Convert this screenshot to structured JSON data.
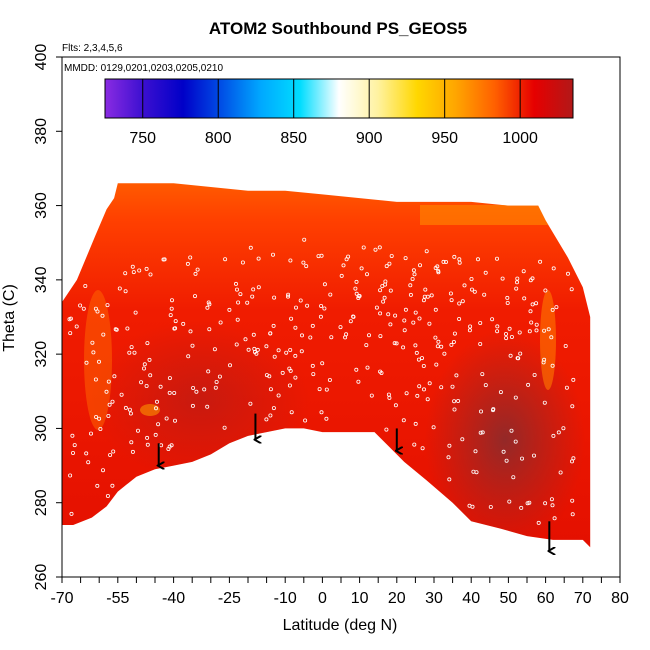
{
  "chart_data": {
    "type": "heatmap",
    "title": "ATOM2 Southbound PS_GEOS5",
    "annotations": {
      "flights": "Flts: 2,3,4,5,6",
      "dates": "MMDD: 0129,0201,0203,0205,0210"
    },
    "xlabel": "Latitude (deg N)",
    "ylabel": "Theta (C)",
    "xlim": [
      -70,
      80
    ],
    "ylim": [
      260,
      400
    ],
    "x_tick_labels": [
      "-70",
      "-55",
      "-40",
      "-25",
      "-10",
      "0",
      "10",
      "20",
      "30",
      "40",
      "50",
      "60",
      "70",
      "80"
    ],
    "y_tick_labels": [
      "260",
      "280",
      "300",
      "320",
      "340",
      "360",
      "380",
      "400"
    ],
    "colorbar": {
      "range": [
        725,
        1035
      ],
      "tick_labels": [
        "750",
        "800",
        "850",
        "900",
        "950",
        "1000"
      ],
      "colors": [
        "#8a2be2",
        "#3a0fd0",
        "#0000c8",
        "#0050e6",
        "#00a8ff",
        "#00ddff",
        "#ffffff",
        "#fff2a0",
        "#ffd700",
        "#ffa500",
        "#ff6000",
        "#e60000",
        "#b21818"
      ]
    },
    "domain_top": [
      [
        -70,
        334
      ],
      [
        -66,
        340
      ],
      [
        -61,
        352
      ],
      [
        -58,
        359
      ],
      [
        -56,
        362
      ],
      [
        -55,
        366
      ],
      [
        -50,
        366
      ],
      [
        -40,
        366
      ],
      [
        -30,
        365
      ],
      [
        -20,
        364
      ],
      [
        -10,
        364
      ],
      [
        0,
        363
      ],
      [
        10,
        362
      ],
      [
        20,
        361
      ],
      [
        30,
        361
      ],
      [
        40,
        361
      ],
      [
        50,
        360
      ],
      [
        58,
        360
      ],
      [
        60,
        356
      ],
      [
        66,
        346
      ],
      [
        70,
        338
      ],
      [
        72,
        330
      ]
    ],
    "domain_bottom": [
      [
        72,
        268
      ],
      [
        70,
        270
      ],
      [
        62,
        270
      ],
      [
        55,
        271
      ],
      [
        48,
        273
      ],
      [
        40,
        275
      ],
      [
        35,
        280
      ],
      [
        28,
        286
      ],
      [
        22,
        291
      ],
      [
        18,
        295
      ],
      [
        14,
        299
      ],
      [
        10,
        299
      ],
      [
        5,
        299
      ],
      [
        0,
        299
      ],
      [
        -5,
        300
      ],
      [
        -8,
        300
      ],
      [
        -10,
        300
      ],
      [
        -15,
        299
      ],
      [
        -20,
        298
      ],
      [
        -25,
        296
      ],
      [
        -30,
        293
      ],
      [
        -35,
        291
      ],
      [
        -40,
        290
      ],
      [
        -45,
        289
      ],
      [
        -50,
        287
      ],
      [
        -55,
        283
      ],
      [
        -58,
        279
      ],
      [
        -62,
        276
      ],
      [
        -67,
        274
      ],
      [
        -70,
        274
      ]
    ],
    "sample_arrows_x": [
      -44,
      -18,
      20,
      61
    ],
    "sample_arrows_ytop": [
      296,
      304,
      300,
      275
    ],
    "sample_arrows_ybottom": [
      290,
      297,
      294,
      267
    ]
  }
}
